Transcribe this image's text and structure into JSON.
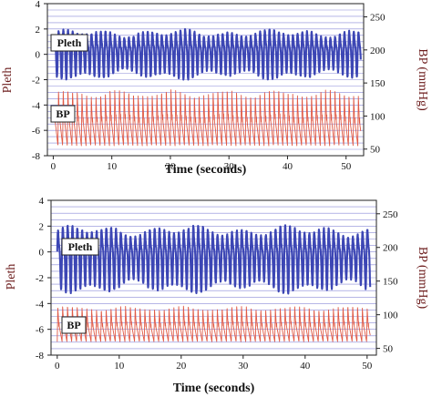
{
  "chart_data": [
    {
      "type": "line",
      "xlabel": "Time (seconds)",
      "ylabel": "Pleth",
      "y2label": "BP (mmHg)",
      "xlim": [
        -1,
        53
      ],
      "ylim": [
        -8,
        4
      ],
      "y2lim": [
        40,
        270
      ],
      "x_ticks": [
        0,
        10,
        20,
        30,
        40,
        50
      ],
      "y_ticks": [
        4,
        2,
        0,
        -2,
        -4,
        -6,
        -8
      ],
      "y2_ticks": [
        250,
        200,
        150,
        100,
        50
      ],
      "grid": true,
      "series": [
        {
          "name": "Pleth",
          "color": "#3c46b4",
          "axis": "left",
          "x_start": 0.3,
          "x_end": 52.5,
          "period_s": 0.8,
          "baseline": 0.2,
          "amplitude": 1.8,
          "range": [
            -2.5,
            2.4
          ]
        },
        {
          "name": "BP",
          "color": "#e05a46",
          "axis": "right",
          "x_start": 0.3,
          "x_end": 52.5,
          "period_s": 0.8,
          "range_mmhg": [
            55,
            135
          ]
        }
      ]
    },
    {
      "type": "line",
      "xlabel": "Time (seconds)",
      "ylabel": "Pleth",
      "y2label": "BP (mmHg)",
      "xlim": [
        -1,
        51.5
      ],
      "ylim": [
        -8,
        4
      ],
      "y2lim": [
        40,
        270
      ],
      "x_ticks": [
        0,
        10,
        20,
        30,
        40,
        50
      ],
      "y_ticks": [
        4,
        2,
        0,
        -2,
        -4,
        -6,
        -8
      ],
      "y2_ticks": [
        250,
        200,
        150,
        100,
        50
      ],
      "grid": true,
      "series": [
        {
          "name": "Pleth",
          "color": "#3c46b4",
          "axis": "left",
          "x_start": 0,
          "x_end": 50.5,
          "period_s": 0.78,
          "baseline": -0.3,
          "amplitude": 2.4,
          "range": [
            -3.3,
            3.1
          ]
        },
        {
          "name": "BP",
          "color": "#e05a46",
          "axis": "right",
          "x_start": 0,
          "x_end": 50.5,
          "period_s": 0.78,
          "range_mmhg": [
            60,
            110
          ]
        }
      ]
    }
  ]
}
